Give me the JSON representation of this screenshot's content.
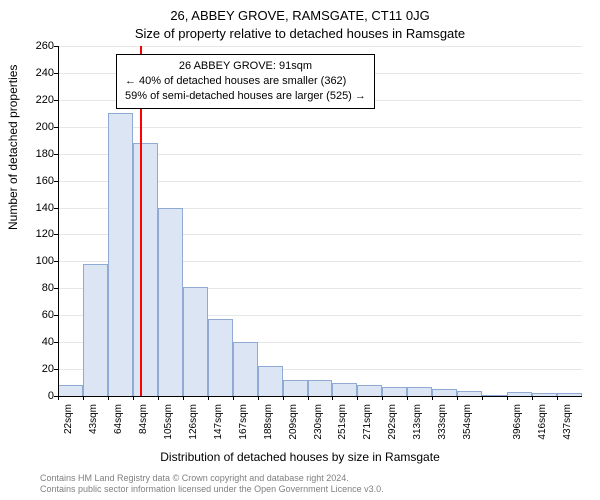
{
  "titles": {
    "line1": "26, ABBEY GROVE, RAMSGATE, CT11 0JG",
    "line2": "Size of property relative to detached houses in Ramsgate"
  },
  "axes": {
    "ylabel": "Number of detached properties",
    "xlabel": "Distribution of detached houses by size in Ramsgate"
  },
  "footer": {
    "line1": "Contains HM Land Registry data © Crown copyright and database right 2024.",
    "line2": "Contains public sector information licensed under the Open Government Licence v3.0."
  },
  "chart": {
    "type": "histogram",
    "ylim": [
      0,
      260
    ],
    "ytick_step": 20,
    "background": "#ffffff",
    "grid_color": "#e6e6e6",
    "axis_color": "#000000",
    "bar_fill": "#dbe5f4",
    "bar_stroke": "#8faad3",
    "bar_width_ratio": 1.0,
    "marker": {
      "x_value": 91,
      "color": "#ff0000"
    },
    "x_start": 22,
    "x_step": 21,
    "x_unit": "sqm",
    "values": [
      8,
      98,
      210,
      188,
      140,
      81,
      57,
      40,
      22,
      12,
      12,
      10,
      8,
      7,
      7,
      5,
      4,
      0,
      3,
      2,
      2
    ],
    "x_labels": [
      "22sqm",
      "43sqm",
      "64sqm",
      "84sqm",
      "105sqm",
      "126sqm",
      "147sqm",
      "167sqm",
      "188sqm",
      "209sqm",
      "230sqm",
      "251sqm",
      "271sqm",
      "292sqm",
      "313sqm",
      "333sqm",
      "354sqm",
      "",
      "396sqm",
      "416sqm",
      "437sqm"
    ]
  },
  "annotation": {
    "line1": "26 ABBEY GROVE: 91sqm",
    "line2": "← 40% of detached houses are smaller (362)",
    "line3": "59% of semi-detached houses are larger (525) →"
  }
}
